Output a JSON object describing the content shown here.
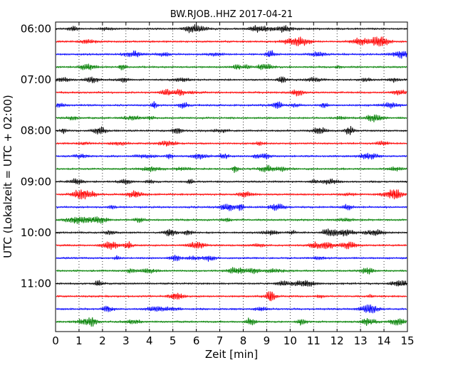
{
  "chart_data": {
    "type": "line",
    "title": "BW.RJOB..HHZ 2017-04-21",
    "xlabel": "Zeit  [min]",
    "ylabel": "UTC (Lokalzeit = UTC + 02:00)",
    "xlim": [
      0,
      15
    ],
    "xticks": [
      0,
      1,
      2,
      3,
      4,
      5,
      6,
      7,
      8,
      9,
      10,
      11,
      12,
      13,
      14,
      15
    ],
    "hour_labels": [
      "06:00",
      "07:00",
      "08:00",
      "09:00",
      "10:00",
      "11:00"
    ],
    "rows_per_hour": 4,
    "minutes_per_row": 15,
    "grid": {
      "x": true,
      "y": false,
      "style": "dotted"
    },
    "series_colors": [
      "#000000",
      "#ff0000",
      "#0000ff",
      "#008000"
    ],
    "rows": [
      {
        "start": "06:00",
        "color": "#000000"
      },
      {
        "start": "06:15",
        "color": "#ff0000"
      },
      {
        "start": "06:30",
        "color": "#0000ff"
      },
      {
        "start": "06:45",
        "color": "#008000"
      },
      {
        "start": "07:00",
        "color": "#000000"
      },
      {
        "start": "07:15",
        "color": "#ff0000"
      },
      {
        "start": "07:30",
        "color": "#0000ff"
      },
      {
        "start": "07:45",
        "color": "#008000"
      },
      {
        "start": "08:00",
        "color": "#000000"
      },
      {
        "start": "08:15",
        "color": "#ff0000"
      },
      {
        "start": "08:30",
        "color": "#0000ff"
      },
      {
        "start": "08:45",
        "color": "#008000"
      },
      {
        "start": "09:00",
        "color": "#000000"
      },
      {
        "start": "09:15",
        "color": "#ff0000"
      },
      {
        "start": "09:30",
        "color": "#0000ff"
      },
      {
        "start": "09:45",
        "color": "#008000"
      },
      {
        "start": "10:00",
        "color": "#000000"
      },
      {
        "start": "10:15",
        "color": "#ff0000"
      },
      {
        "start": "10:30",
        "color": "#0000ff"
      },
      {
        "start": "10:45",
        "color": "#008000"
      },
      {
        "start": "11:00",
        "color": "#000000"
      },
      {
        "start": "11:15",
        "color": "#ff0000"
      },
      {
        "start": "11:30",
        "color": "#0000ff"
      },
      {
        "start": "11:45",
        "color": "#008000"
      }
    ]
  }
}
